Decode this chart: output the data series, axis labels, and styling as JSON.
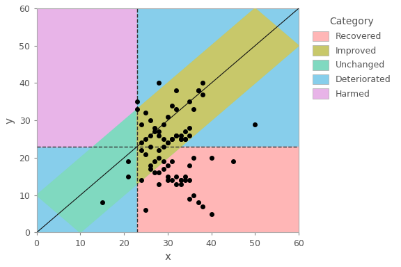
{
  "xlim": [
    0,
    60
  ],
  "ylim": [
    0,
    60
  ],
  "xlabel": "x",
  "ylabel": "y",
  "ref_x": 23,
  "ref_y": 23,
  "mid": 10,
  "legend_title": "Category",
  "legend_labels": [
    "Recovered",
    "Improved",
    "Unchanged",
    "Deteriorated",
    "Harmed"
  ],
  "legend_colors": [
    "#FFB6B6",
    "#C8C86A",
    "#80D9C0",
    "#87CEEB",
    "#E8B4E8"
  ],
  "region_colors": {
    "recovered": "#FFB6B6",
    "improved": "#C8C86A",
    "unchanged": "#80D9C0",
    "deteriorated": "#87CEEB",
    "harmed": "#E8B4E8"
  },
  "scatter_x": [
    23,
    23,
    24,
    25,
    26,
    27,
    28,
    29,
    30,
    31,
    32,
    33,
    34,
    35,
    36,
    37,
    38,
    28,
    32,
    35,
    37,
    38,
    24,
    25,
    26,
    27,
    28,
    29,
    30,
    31,
    32,
    33,
    34,
    35,
    26,
    28,
    29,
    30,
    31,
    32,
    33,
    34,
    26,
    27,
    28,
    29,
    30,
    31,
    32,
    33,
    34,
    35,
    36,
    28,
    30,
    33,
    35,
    50,
    24,
    25,
    26,
    27,
    28,
    29,
    30,
    31,
    32,
    33,
    34,
    35,
    36,
    37,
    38,
    40,
    21,
    15,
    21,
    24,
    25,
    40,
    45
  ],
  "scatter_y": [
    35,
    33,
    29,
    32,
    30,
    28,
    27,
    29,
    31,
    34,
    33,
    26,
    25,
    26,
    33,
    38,
    37,
    40,
    38,
    35,
    38,
    40,
    24,
    25,
    26,
    27,
    26,
    25,
    24,
    25,
    26,
    25,
    27,
    28,
    23,
    22,
    23,
    24,
    25,
    26,
    25,
    25,
    18,
    19,
    20,
    19,
    18,
    19,
    15,
    14,
    15,
    18,
    20,
    13,
    14,
    14,
    14,
    29,
    22,
    21,
    17,
    16,
    16,
    17,
    15,
    14,
    13,
    13,
    14,
    9,
    10,
    8,
    7,
    5,
    19,
    8,
    15,
    14,
    6,
    20,
    19
  ],
  "dashed_line_color": "#333333",
  "diagonal_line_color": "#111111"
}
